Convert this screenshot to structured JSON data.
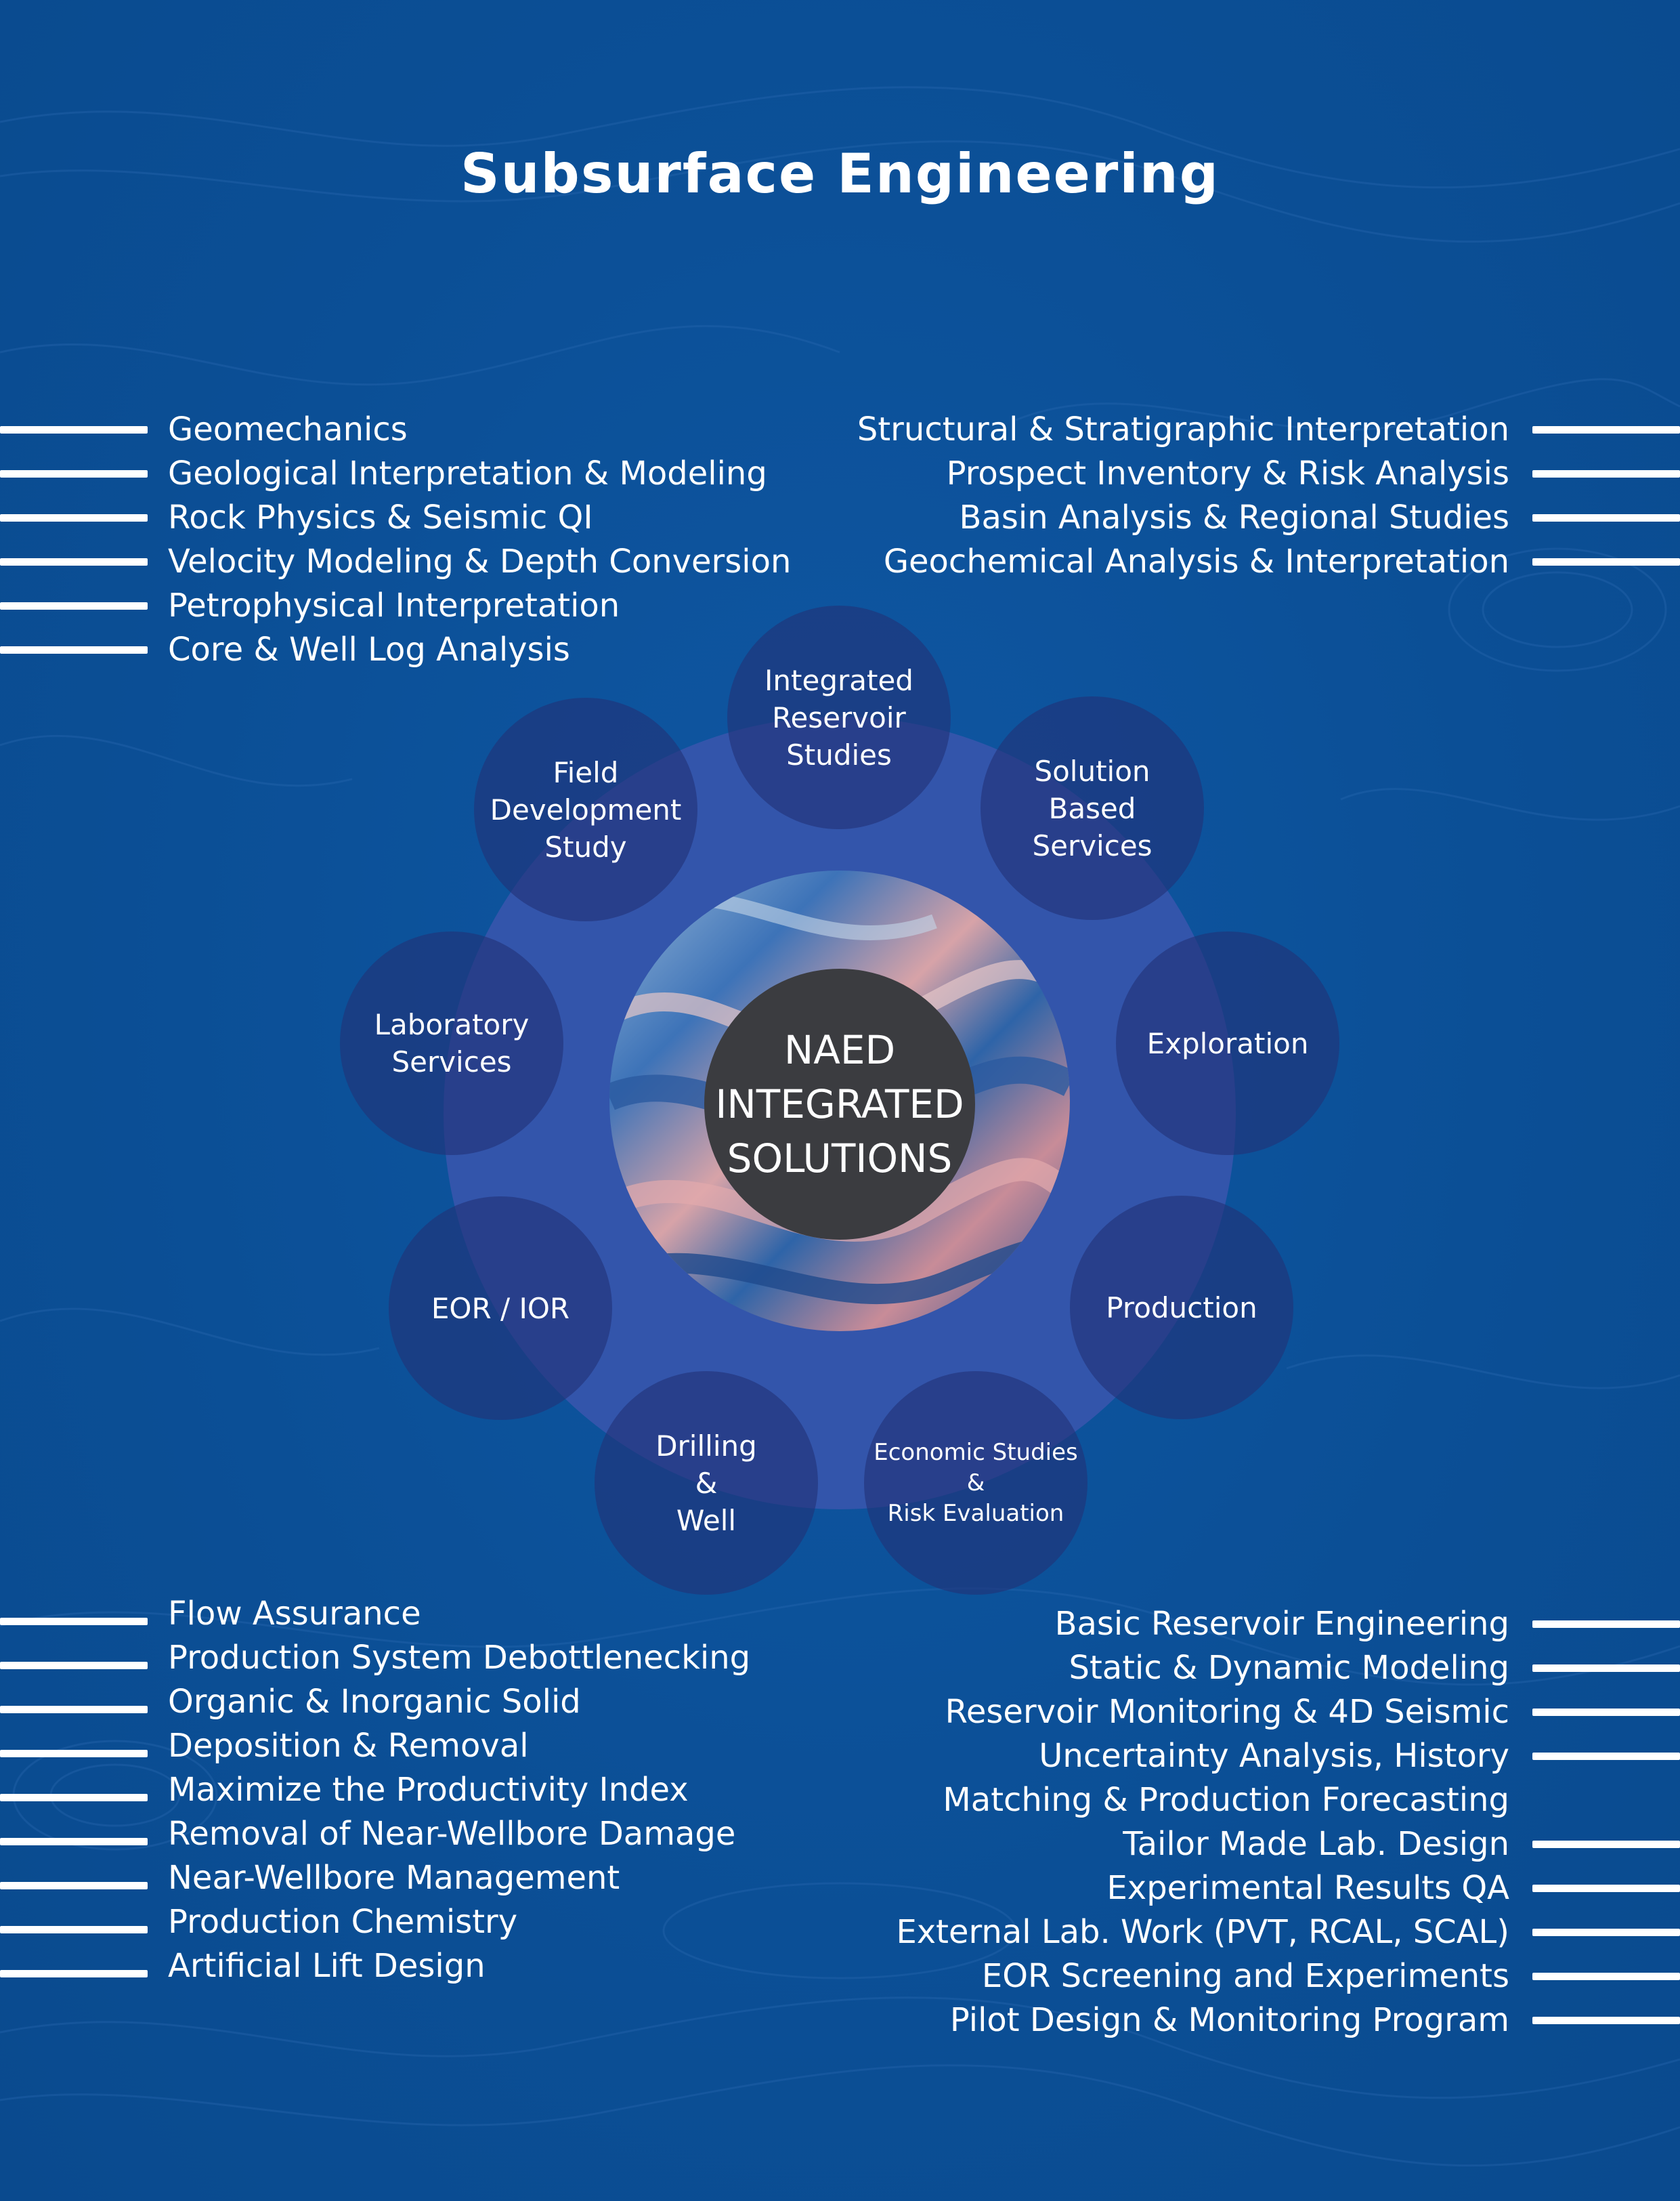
{
  "title": "Subsurface Engineering",
  "colors": {
    "background": "#0b4f96",
    "ring": "#3358ad",
    "node": "#223278",
    "center": "#3b3c40",
    "text": "#ffffff"
  },
  "center": {
    "label": "NAED\nINTEGRATED\nSOLUTIONS"
  },
  "nodes": [
    {
      "label": "Integrated\nReservoir\nStudies"
    },
    {
      "label": "Solution\nBased\nServices"
    },
    {
      "label": "Exploration"
    },
    {
      "label": "Production"
    },
    {
      "label": "Economic Studies\n&\nRisk Evaluation"
    },
    {
      "label": "Drilling\n&\nWell"
    },
    {
      "label": "EOR / IOR"
    },
    {
      "label": "Laboratory\nServices"
    },
    {
      "label": "Field\nDevelopment\nStudy"
    }
  ],
  "lists": {
    "top_left": [
      "Geomechanics",
      "Geological Interpretation & Modeling",
      "Rock Physics &  Seismic QI",
      "Velocity Modeling & Depth Conversion",
      "Petrophysical Interpretation",
      "Core & Well Log Analysis"
    ],
    "top_right": [
      "Structural & Stratigraphic Interpretation",
      "Prospect Inventory & Risk Analysis",
      "Basin Analysis & Regional Studies",
      "Geochemical Analysis & Interpretation"
    ],
    "bottom_left": [
      "Flow Assurance",
      "Production System Debottlenecking",
      "Organic & Inorganic Solid",
      "Deposition & Removal",
      "Maximize the Productivity Index",
      "Removal of Near-Wellbore Damage",
      "Near-Wellbore Management",
      "Production Chemistry",
      "Artificial Lift Design"
    ],
    "bottom_right": [
      "Basic Reservoir Engineering",
      "Static & Dynamic Modeling",
      "Reservoir Monitoring & 4D Seismic",
      "Uncertainty Analysis, History",
      "Matching & Production Forecasting",
      "Tailor Made Lab. Design",
      "Experimental Results QA",
      "External Lab. Work (PVT, RCAL, SCAL)",
      "EOR Screening and Experiments",
      "Pilot Design & Monitoring Program"
    ]
  }
}
